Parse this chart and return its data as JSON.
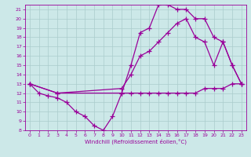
{
  "bg_color": "#cce8e8",
  "grid_color": "#aacccc",
  "line_color": "#990099",
  "marker": "+",
  "marker_size": 4,
  "line_width": 0.9,
  "xlabel": "Windchill (Refroidissement éolien,°C)",
  "xlim": [
    -0.5,
    23.5
  ],
  "ylim": [
    8,
    21.5
  ],
  "xticks": [
    0,
    1,
    2,
    3,
    4,
    5,
    6,
    7,
    8,
    9,
    10,
    11,
    12,
    13,
    14,
    15,
    16,
    17,
    18,
    19,
    20,
    21,
    22,
    23
  ],
  "yticks": [
    8,
    9,
    10,
    11,
    12,
    13,
    14,
    15,
    16,
    17,
    18,
    19,
    20,
    21
  ],
  "lines": [
    {
      "x": [
        0,
        1,
        2,
        3,
        4,
        5,
        6,
        7,
        8,
        9,
        10,
        11,
        12,
        13,
        14,
        15,
        16,
        17,
        18,
        19,
        20,
        21,
        22,
        23
      ],
      "y": [
        13,
        12,
        11.7,
        11.5,
        11.0,
        10.0,
        9.5,
        8.5,
        8.0,
        9.5,
        12.0,
        12.0,
        12.0,
        12.0,
        12.0,
        12.0,
        12.0,
        12.0,
        12.0,
        12.5,
        12.5,
        12.5,
        13.0,
        13.0
      ]
    },
    {
      "x": [
        0,
        3,
        10,
        11,
        12,
        13,
        14,
        15,
        16,
        17,
        18,
        19,
        20,
        21,
        22,
        23
      ],
      "y": [
        13,
        12,
        12.0,
        15.0,
        18.5,
        19.0,
        21.5,
        21.5,
        21.0,
        21.0,
        20.0,
        20.0,
        18.0,
        17.5,
        15.0,
        13.0
      ]
    },
    {
      "x": [
        0,
        3,
        10,
        11,
        12,
        13,
        14,
        15,
        16,
        17,
        18,
        19,
        20,
        21,
        22,
        23
      ],
      "y": [
        13,
        12,
        12.5,
        14.0,
        16.0,
        16.5,
        17.5,
        18.5,
        19.5,
        20.0,
        18.0,
        17.5,
        15.0,
        17.5,
        15.0,
        13.0
      ]
    }
  ]
}
